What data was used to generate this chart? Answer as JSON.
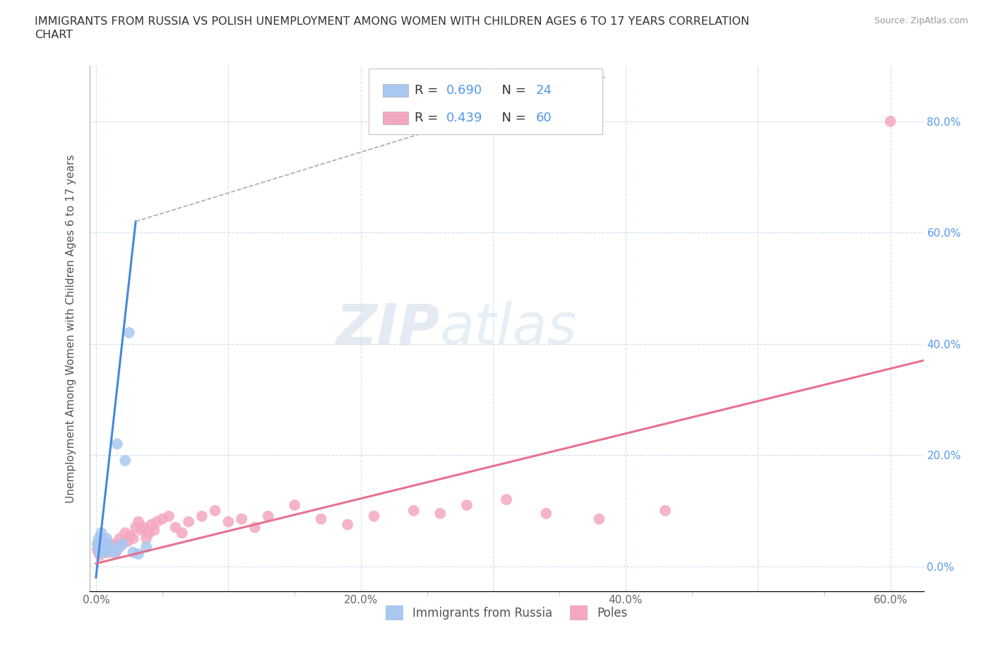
{
  "title_line1": "IMMIGRANTS FROM RUSSIA VS POLISH UNEMPLOYMENT AMONG WOMEN WITH CHILDREN AGES 6 TO 17 YEARS CORRELATION",
  "title_line2": "CHART",
  "source": "Source: ZipAtlas.com",
  "ylabel": "Unemployment Among Women with Children Ages 6 to 17 years",
  "color_russia": "#a8c8f0",
  "color_poles": "#f4a8c0",
  "color_russia_line": "#4488dd",
  "color_poles_line": "#e87090",
  "color_grid": "#c8dcea",
  "watermark_zip": "ZIP",
  "watermark_atlas": "atlas",
  "russia_x": [
    0.001,
    0.002,
    0.002,
    0.003,
    0.003,
    0.004,
    0.004,
    0.005,
    0.005,
    0.006,
    0.007,
    0.008,
    0.009,
    0.01,
    0.012,
    0.014,
    0.016,
    0.018,
    0.02,
    0.022,
    0.025,
    0.028,
    0.032,
    0.038
  ],
  "russia_y": [
    0.04,
    0.03,
    0.05,
    0.03,
    0.025,
    0.06,
    0.04,
    0.05,
    0.035,
    0.03,
    0.025,
    0.05,
    0.04,
    0.035,
    0.03,
    0.025,
    0.22,
    0.035,
    0.04,
    0.19,
    0.42,
    0.025,
    0.022,
    0.035
  ],
  "poles_x": [
    0.001,
    0.002,
    0.002,
    0.003,
    0.003,
    0.004,
    0.004,
    0.005,
    0.005,
    0.006,
    0.006,
    0.007,
    0.008,
    0.008,
    0.009,
    0.01,
    0.011,
    0.012,
    0.013,
    0.014,
    0.015,
    0.016,
    0.018,
    0.02,
    0.022,
    0.024,
    0.026,
    0.028,
    0.03,
    0.032,
    0.034,
    0.036,
    0.038,
    0.04,
    0.042,
    0.044,
    0.046,
    0.05,
    0.055,
    0.06,
    0.065,
    0.07,
    0.08,
    0.09,
    0.1,
    0.11,
    0.12,
    0.13,
    0.15,
    0.17,
    0.19,
    0.21,
    0.24,
    0.26,
    0.28,
    0.31,
    0.34,
    0.38,
    0.43,
    0.6
  ],
  "poles_y": [
    0.03,
    0.025,
    0.04,
    0.02,
    0.035,
    0.025,
    0.03,
    0.04,
    0.025,
    0.03,
    0.045,
    0.035,
    0.03,
    0.025,
    0.035,
    0.04,
    0.03,
    0.025,
    0.035,
    0.04,
    0.025,
    0.03,
    0.05,
    0.04,
    0.06,
    0.045,
    0.055,
    0.05,
    0.07,
    0.08,
    0.065,
    0.07,
    0.05,
    0.06,
    0.075,
    0.065,
    0.08,
    0.085,
    0.09,
    0.07,
    0.06,
    0.08,
    0.09,
    0.1,
    0.08,
    0.085,
    0.07,
    0.09,
    0.11,
    0.085,
    0.075,
    0.09,
    0.1,
    0.095,
    0.11,
    0.12,
    0.095,
    0.085,
    0.1,
    0.8
  ],
  "xlim": [
    -0.005,
    0.625
  ],
  "ylim": [
    -0.045,
    0.9
  ],
  "russia_trend_x": [
    0.0,
    0.03
  ],
  "russia_trend_y": [
    -0.02,
    0.62
  ],
  "poles_trend_x": [
    0.0,
    0.625
  ],
  "poles_trend_y": [
    0.005,
    0.37
  ],
  "dash_line_x": [
    0.03,
    0.385
  ],
  "dash_line_y": [
    0.62,
    0.88
  ],
  "x_ticks": [
    0.0,
    0.1,
    0.2,
    0.3,
    0.4,
    0.5,
    0.6
  ],
  "x_tick_labels": [
    "0.0%",
    "",
    "20.0%",
    "",
    "40.0%",
    "",
    "60.0%"
  ],
  "y_ticks": [
    0.0,
    0.2,
    0.4,
    0.6,
    0.8
  ],
  "y_tick_labels_right": [
    "0.0%",
    "20.0%",
    "40.0%",
    "60.0%",
    "80.0%"
  ]
}
